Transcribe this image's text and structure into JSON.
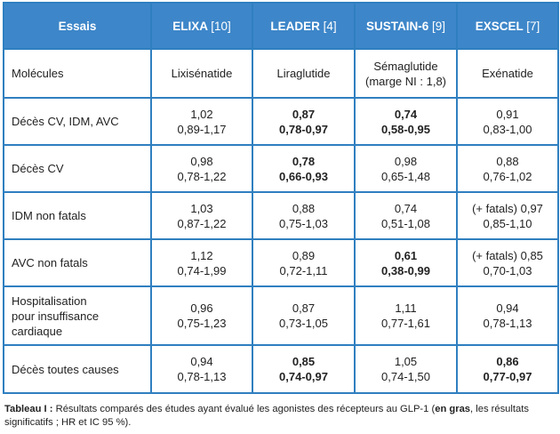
{
  "header": {
    "col0": "Essais",
    "studies": [
      {
        "name": "ELIXA",
        "ref": "[10]"
      },
      {
        "name": "LEADER",
        "ref": "[4]"
      },
      {
        "name": "SUSTAIN-6",
        "ref": "[9]"
      },
      {
        "name": "EXSCEL",
        "ref": "[7]"
      }
    ]
  },
  "molecules_row": {
    "label": "Molécules",
    "values": [
      "Lixisénatide",
      "Liraglutide",
      "Sémaglutide",
      "Exénatide"
    ],
    "note_sustain": "(marge NI : 1,8)"
  },
  "rows": [
    {
      "label": "Décès CV, IDM, AVC",
      "cells": [
        {
          "hr": "1,02",
          "ci": "0,89-1,17",
          "significant": false
        },
        {
          "hr": "0,87",
          "ci": "0,78-0,97",
          "significant": true
        },
        {
          "hr": "0,74",
          "ci": "0,58-0,95",
          "significant": true
        },
        {
          "hr": "0,91",
          "ci": "0,83-1,00",
          "significant": false
        }
      ]
    },
    {
      "label": "Décès CV",
      "cells": [
        {
          "hr": "0,98",
          "ci": "0,78-1,22",
          "significant": false
        },
        {
          "hr": "0,78",
          "ci": "0,66-0,93",
          "significant": true
        },
        {
          "hr": "0,98",
          "ci": "0,65-1,48",
          "significant": false
        },
        {
          "hr": "0,88",
          "ci": "0,76-1,02",
          "significant": false
        }
      ]
    },
    {
      "label": "IDM non fatals",
      "cells": [
        {
          "hr": "1,03",
          "ci": "0,87-1,22",
          "significant": false
        },
        {
          "hr": "0,88",
          "ci": "0,75-1,03",
          "significant": false
        },
        {
          "hr": "0,74",
          "ci": "0,51-1,08",
          "significant": false
        },
        {
          "hr": "(+ fatals) 0,97",
          "ci": "0,85-1,10",
          "significant": false
        }
      ]
    },
    {
      "label": "AVC non fatals",
      "cells": [
        {
          "hr": "1,12",
          "ci": "0,74-1,99",
          "significant": false
        },
        {
          "hr": "0,89",
          "ci": "0,72-1,11",
          "significant": false
        },
        {
          "hr": "0,61",
          "ci": "0,38-0,99",
          "significant": true
        },
        {
          "hr": "(+ fatals) 0,85",
          "ci": "0,70-1,03",
          "significant": false
        }
      ]
    },
    {
      "label_lines": [
        "Hospitalisation",
        "pour insuffisance",
        "cardiaque"
      ],
      "cells": [
        {
          "hr": "0,96",
          "ci": "0,75-1,23",
          "significant": false
        },
        {
          "hr": "0,87",
          "ci": "0,73-1,05",
          "significant": false
        },
        {
          "hr": "1,11",
          "ci": "0,77-1,61",
          "significant": false
        },
        {
          "hr": "0,94",
          "ci": "0,78-1,13",
          "significant": false
        }
      ]
    },
    {
      "label": "Décès toutes causes",
      "cells": [
        {
          "hr": "0,94",
          "ci": "0,78-1,13",
          "significant": false
        },
        {
          "hr": "0,85",
          "ci": "0,74-0,97",
          "significant": true
        },
        {
          "hr": "1,05",
          "ci": "0,74-1,50",
          "significant": false
        },
        {
          "hr": "0,86",
          "ci": "0,77-0,97",
          "significant": true
        }
      ]
    }
  ],
  "caption": {
    "label": "Tableau I :",
    "text1": " Résultats comparés des études ayant évalué les agonistes des récepteurs au GLP-1 (",
    "bold_part": "en gras",
    "text2": ", les résultats significatifs ; HR et IC 95 %)."
  },
  "colors": {
    "header_bg": "#3d86c9",
    "border": "#2f7fc0",
    "header_text": "#ffffff"
  }
}
